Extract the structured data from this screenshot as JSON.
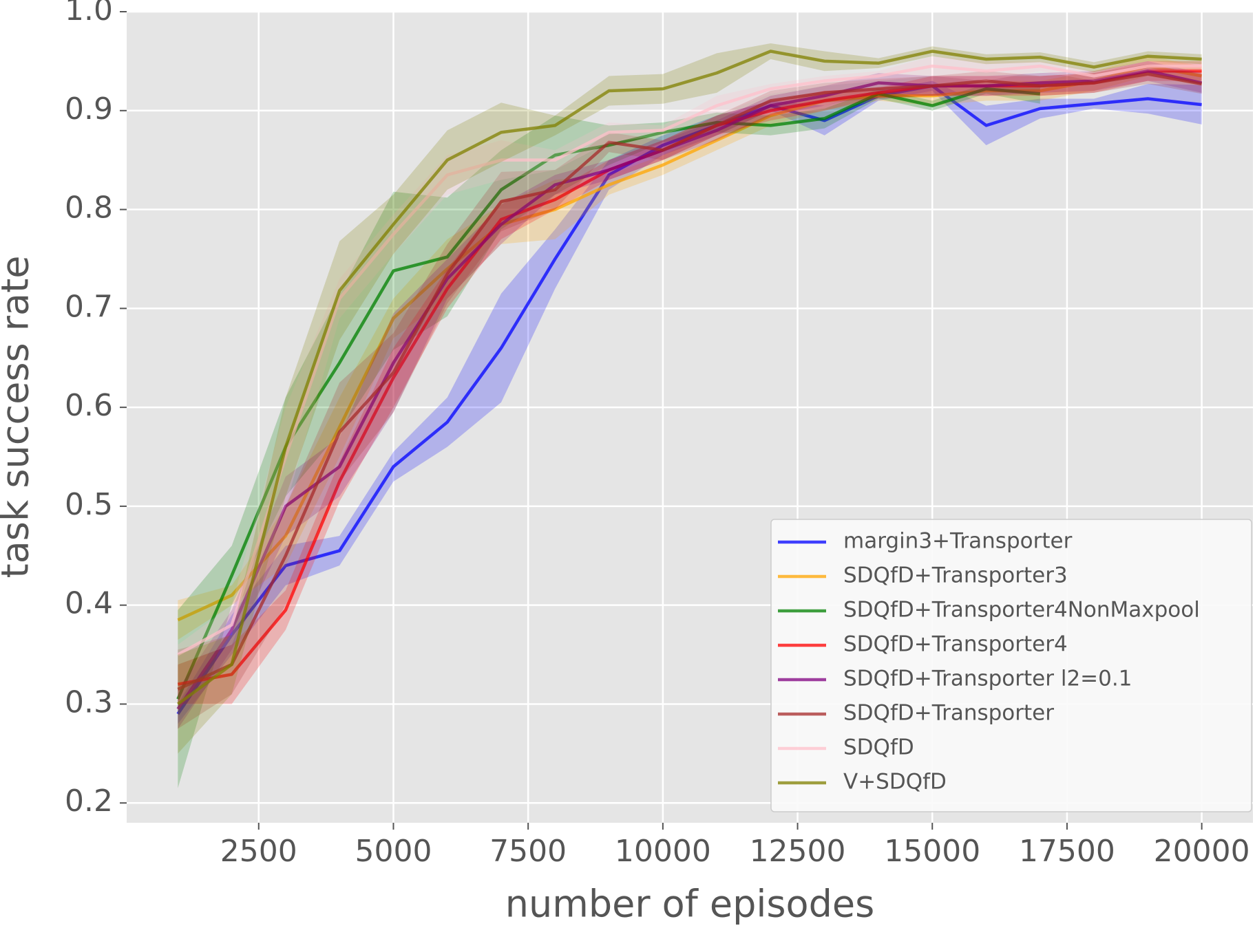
{
  "chart_data": {
    "type": "line",
    "xlabel": "number of episodes",
    "ylabel": "task success rate",
    "x": [
      1000,
      2000,
      3000,
      4000,
      5000,
      6000,
      7000,
      8000,
      9000,
      10000,
      11000,
      12000,
      13000,
      14000,
      15000,
      16000,
      17000,
      18000,
      19000,
      20000
    ],
    "xlim": [
      50,
      20950
    ],
    "xticks": [
      2500,
      5000,
      7500,
      10000,
      12500,
      15000,
      17500,
      20000
    ],
    "ylim": [
      0.18,
      1.0
    ],
    "yticks": [
      0.2,
      0.3,
      0.4,
      0.5,
      0.6,
      0.7,
      0.8,
      0.9,
      {
        "value": 1,
        "label": "1.0"
      }
    ],
    "grid": true,
    "legend": "lower right",
    "series": [
      {
        "name": "margin3+Transporter",
        "color": "#0000ff",
        "values": [
          0.29,
          0.37,
          0.44,
          0.455,
          0.54,
          0.585,
          0.66,
          0.75,
          0.835,
          0.865,
          0.885,
          0.905,
          0.89,
          0.915,
          0.925,
          0.885,
          0.902,
          0.907,
          0.912,
          0.906
        ],
        "errors": [
          0.01,
          0.02,
          0.02,
          0.015,
          0.015,
          0.025,
          0.055,
          0.03,
          0.015,
          0.01,
          0.01,
          0.005,
          0.015,
          0.005,
          0.005,
          0.02,
          0.01,
          0.005,
          0.015,
          0.02
        ]
      },
      {
        "name": "SDQfD+Transporter3",
        "color": "#ffa500",
        "values": [
          0.385,
          0.41,
          0.47,
          0.58,
          0.69,
          0.74,
          0.785,
          0.8,
          0.825,
          0.845,
          0.87,
          0.895,
          0.91,
          0.915,
          0.915,
          0.92,
          0.92,
          0.93,
          0.945,
          0.935
        ],
        "errors": [
          0.02,
          0.01,
          0.03,
          0.03,
          0.02,
          0.03,
          0.02,
          0.03,
          0.01,
          0.01,
          0.01,
          0.01,
          0.01,
          0.005,
          0.01,
          0.01,
          0.01,
          0.01,
          0.01,
          0.01
        ]
      },
      {
        "name": "SDQfD+Transporter4NonMaxpool",
        "color": "#008000",
        "values": [
          0.305,
          0.43,
          0.56,
          0.645,
          0.738,
          0.752,
          0.82,
          0.855,
          0.865,
          0.878,
          0.888,
          0.885,
          0.892,
          0.917,
          0.905,
          0.922,
          0.917,
          null,
          null,
          null
        ],
        "errors": [
          0.09,
          0.03,
          0.05,
          0.07,
          0.08,
          0.06,
          0.04,
          0.04,
          0.02,
          0.01,
          0.01,
          0.01,
          0.01,
          0.005,
          0.005,
          0.005,
          0.01,
          null,
          null,
          null
        ]
      },
      {
        "name": "SDQfD+Transporter4",
        "color": "#ff0000",
        "values": [
          0.32,
          0.33,
          0.395,
          0.525,
          0.63,
          0.72,
          0.79,
          0.81,
          0.84,
          0.86,
          0.885,
          0.9,
          0.91,
          0.918,
          0.925,
          0.925,
          0.925,
          0.928,
          0.94,
          0.94
        ],
        "errors": [
          0.02,
          0.03,
          0.02,
          0.02,
          0.03,
          0.02,
          0.02,
          0.01,
          0.01,
          0.01,
          0.01,
          0.01,
          0.01,
          0.005,
          0.01,
          0.01,
          0.01,
          0.01,
          0.01,
          0.01
        ]
      },
      {
        "name": "SDQfD+Transporter l2=0.1",
        "color": "#800080",
        "values": [
          0.295,
          0.375,
          0.5,
          0.54,
          0.645,
          0.73,
          0.785,
          0.825,
          0.84,
          0.86,
          0.88,
          0.905,
          0.915,
          0.928,
          0.925,
          0.925,
          0.928,
          0.93,
          0.94,
          0.928
        ],
        "errors": [
          0.02,
          0.02,
          0.03,
          0.03,
          0.05,
          0.02,
          0.02,
          0.01,
          0.01,
          0.01,
          0.01,
          0.01,
          0.01,
          0.01,
          0.01,
          0.01,
          0.01,
          0.01,
          0.01,
          0.01
        ]
      },
      {
        "name": "SDQfD+Transporter",
        "color": "#a52a2a",
        "values": [
          0.315,
          0.34,
          0.45,
          0.575,
          0.635,
          0.735,
          0.808,
          0.82,
          0.868,
          0.86,
          0.885,
          0.91,
          0.918,
          0.922,
          0.925,
          0.93,
          0.925,
          0.928,
          0.937,
          0.927
        ],
        "errors": [
          0.04,
          0.03,
          0.05,
          0.05,
          0.04,
          0.03,
          0.03,
          0.02,
          0.01,
          0.01,
          0.01,
          0.01,
          0.01,
          0.01,
          0.01,
          0.01,
          0.01,
          0.01,
          0.01,
          0.01
        ]
      },
      {
        "name": "SDQfD",
        "color": "#ffc0cb",
        "values": [
          0.35,
          0.38,
          0.55,
          0.71,
          0.775,
          0.835,
          0.85,
          0.85,
          0.878,
          0.88,
          0.905,
          0.922,
          0.93,
          0.935,
          0.945,
          0.94,
          0.945,
          0.935,
          0.945,
          0.945
        ],
        "errors": [
          0.01,
          0.02,
          0.05,
          0.02,
          0.02,
          0.02,
          0.02,
          0.01,
          0.01,
          0.005,
          0.01,
          0.005,
          0.005,
          0.005,
          0.01,
          0.01,
          0.005,
          0.005,
          0.005,
          0.005
        ]
      },
      {
        "name": "V+SDQfD",
        "color": "#808000",
        "values": [
          0.3,
          0.34,
          0.56,
          0.718,
          0.785,
          0.85,
          0.878,
          0.885,
          0.92,
          0.922,
          0.938,
          0.96,
          0.95,
          0.948,
          0.96,
          0.952,
          0.954,
          0.944,
          0.955,
          0.952
        ],
        "errors": [
          0.05,
          0.03,
          0.05,
          0.05,
          0.03,
          0.03,
          0.03,
          0.01,
          0.015,
          0.015,
          0.02,
          0.008,
          0.01,
          0.005,
          0.005,
          0.005,
          0.005,
          0.005,
          0.005,
          0.005
        ]
      }
    ]
  }
}
